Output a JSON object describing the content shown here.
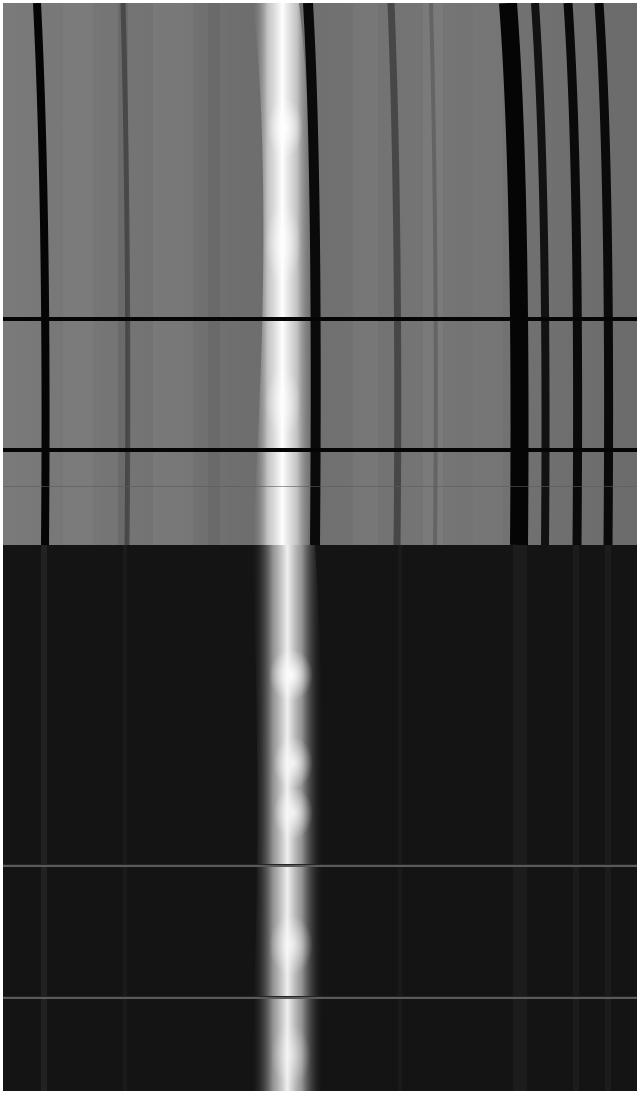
{
  "image": {
    "description_key": "spectral-line-comparison",
    "panels": [
      {
        "id": "top",
        "tone": "gray-background",
        "background": "#747474",
        "bright_band_color": "#ffffff",
        "dark_line_color": "#0a0a0a"
      },
      {
        "id": "bottom",
        "tone": "dark-background",
        "background": "#141414",
        "bright_band_color": "#ffffff",
        "faint_line_color": "#3a3a3a"
      }
    ]
  }
}
